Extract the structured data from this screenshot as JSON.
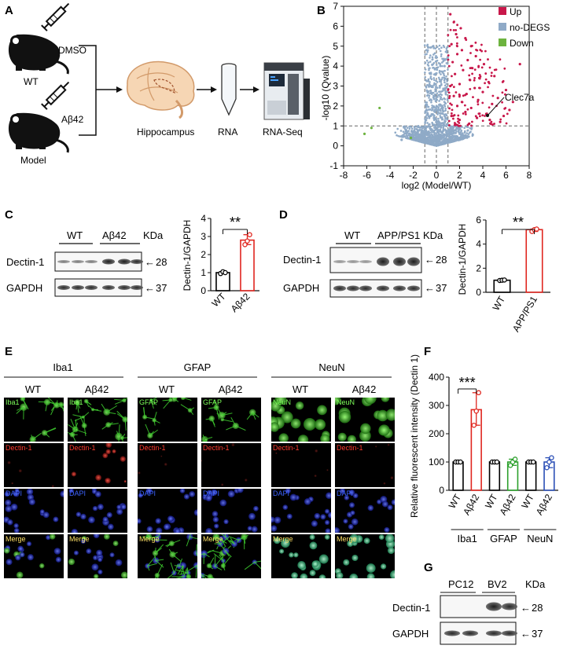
{
  "panel_letters": [
    "A",
    "B",
    "C",
    "D",
    "E",
    "F",
    "G"
  ],
  "panelA": {
    "wt_label": "WT",
    "model_label": "Model",
    "dmso_label": "DMSO",
    "abeta_label": "Aβ42",
    "hippocampus_label": "Hippocampus",
    "rna_label": "RNA",
    "rnaseq_label": "RNA-Seq"
  },
  "panelB": {
    "ylabel": "-log10 (Qvalue)",
    "xlabel": "log2 (Model/WT)",
    "annotation": "Clec7a",
    "legend": [
      {
        "label": "Up",
        "color": "#c8174a"
      },
      {
        "label": "no-DEGS",
        "color": "#8faac7"
      },
      {
        "label": "Down",
        "color": "#6db33f"
      }
    ]
  },
  "panelC": {
    "groups": [
      "WT",
      "Aβ42"
    ],
    "kda": "KDa",
    "rows": [
      {
        "label": "Dectin-1",
        "marker": "28"
      },
      {
        "label": "GAPDH",
        "marker": "37"
      }
    ],
    "sig": "**"
  },
  "panelD": {
    "groups": [
      "WT",
      "APP/PS1"
    ],
    "kda": "KDa",
    "rows": [
      {
        "label": "Dectin-1",
        "marker": "28"
      },
      {
        "label": "GAPDH",
        "marker": "37"
      }
    ],
    "sig": "**"
  },
  "panelE": {
    "groups": [
      {
        "marker": "Iba1",
        "conds": [
          "WT",
          "Aβ42"
        ]
      },
      {
        "marker": "GFAP",
        "conds": [
          "WT",
          "Aβ42"
        ]
      },
      {
        "marker": "NeuN",
        "conds": [
          "WT",
          "Aβ42"
        ]
      }
    ],
    "row_labels": [
      "Dectin-1",
      "DAPI",
      "Merge"
    ]
  },
  "panelF": {
    "sig": "***",
    "group_labels": [
      "Iba1",
      "GFAP",
      "NeuN"
    ]
  },
  "panelG": {
    "groups": [
      "PC12",
      "BV2"
    ],
    "kda": "KDa",
    "rows": [
      {
        "label": "Dectin-1",
        "marker": "28"
      },
      {
        "label": "GAPDH",
        "marker": "37"
      }
    ]
  },
  "chart_data": [
    {
      "type": "scatter",
      "xlabel": "log2 (Model/WT)",
      "ylabel": "-log10 (Qvalue)",
      "xlim": [
        -8,
        8
      ],
      "ylim": [
        -1,
        7
      ],
      "xticks": [
        -8,
        -6,
        -4,
        -2,
        0,
        2,
        4,
        6,
        8
      ],
      "yticks": [
        -1,
        0,
        1,
        2,
        3,
        4,
        5,
        6,
        7
      ],
      "thresholds": {
        "x": [
          -1,
          0,
          1
        ],
        "y": 1
      },
      "series": [
        {
          "name": "Up",
          "points": [
            [
              1.2,
              6.6
            ],
            [
              1.5,
              6.2
            ],
            [
              2.1,
              5.9
            ],
            [
              1.7,
              5.6
            ],
            [
              2.5,
              5.4
            ],
            [
              1.3,
              5.1
            ],
            [
              3.0,
              5.0
            ],
            [
              2.2,
              4.8
            ],
            [
              1.8,
              4.6
            ],
            [
              3.4,
              4.5
            ],
            [
              2.7,
              4.3
            ],
            [
              1.4,
              4.2
            ],
            [
              4.1,
              4.1
            ],
            [
              3.1,
              3.9
            ],
            [
              2.3,
              3.8
            ],
            [
              1.6,
              3.6
            ],
            [
              5.0,
              3.5
            ],
            [
              3.7,
              3.4
            ],
            [
              2.9,
              3.3
            ],
            [
              4.5,
              3.2
            ],
            [
              2.0,
              3.1
            ],
            [
              1.2,
              3.0
            ],
            [
              3.3,
              2.9
            ],
            [
              6.0,
              2.8
            ],
            [
              4.0,
              2.7
            ],
            [
              2.6,
              2.6
            ],
            [
              1.5,
              2.5
            ],
            [
              5.3,
              2.4
            ],
            [
              3.6,
              2.3
            ],
            [
              2.2,
              2.2
            ],
            [
              4.8,
              2.1
            ],
            [
              1.8,
              2.0
            ],
            [
              3.0,
              1.9
            ],
            [
              6.3,
              1.8
            ],
            [
              2.5,
              1.7
            ],
            [
              4.3,
              1.6
            ],
            [
              1.3,
              1.5
            ],
            [
              3.5,
              1.4
            ],
            [
              2.0,
              1.3
            ],
            [
              5.5,
              1.2
            ],
            [
              2.8,
              1.1
            ],
            [
              1.6,
              1.05
            ],
            [
              7.2,
              4.1
            ],
            [
              6.6,
              2.2
            ],
            [
              5.8,
              1.5
            ],
            [
              4.6,
              1.3
            ]
          ]
        },
        {
          "name": "Down",
          "points": [
            [
              -6.2,
              0.6
            ],
            [
              -5.6,
              0.9
            ],
            [
              -4.9,
              1.9
            ],
            [
              -2.2,
              0.4
            ]
          ]
        },
        {
          "name": "no-DEGS",
          "points": [
            [
              -3,
              0.3
            ],
            [
              -2,
              0.5
            ],
            [
              -1,
              0.8
            ],
            [
              0,
              0.4
            ],
            [
              1,
              0.6
            ],
            [
              2,
              0.3
            ],
            [
              -0.5,
              1.5
            ],
            [
              0.5,
              2.0
            ],
            [
              0.3,
              3.0
            ],
            [
              0.7,
              4.0
            ]
          ]
        }
      ],
      "annotations": [
        {
          "text": "Clec7a",
          "x": 4.3,
          "y": 1.7
        }
      ]
    },
    {
      "type": "bar",
      "ylabel": "Dectin-1/GAPDH",
      "categories": [
        "WT",
        "Aβ42"
      ],
      "values": [
        1.0,
        2.8
      ],
      "points": [
        [
          0.95,
          1.05,
          1.0
        ],
        [
          2.55,
          2.75,
          3.1
        ]
      ],
      "ylim": [
        0,
        4
      ],
      "yticks": [
        0,
        1,
        2,
        3,
        4
      ],
      "colors": [
        "#000000",
        "#e0261f"
      ]
    },
    {
      "type": "bar",
      "ylabel": "Dectin-1/GAPDH",
      "categories": [
        "WT",
        "APP/PS1"
      ],
      "values": [
        1.0,
        5.2
      ],
      "points": [
        [
          0.98,
          1.0,
          1.02
        ],
        [
          5.05,
          5.2,
          5.25
        ]
      ],
      "ylim": [
        0,
        6
      ],
      "yticks": [
        0,
        2,
        4,
        6
      ],
      "colors": [
        "#000000",
        "#e0261f"
      ]
    },
    {
      "type": "bar",
      "ylabel": "Relative fluorescent intensity (Dectin 1)",
      "categories": [
        "WT",
        "Aβ42",
        "WT",
        "Aβ42",
        "WT",
        "Aβ42"
      ],
      "values": [
        100,
        285,
        100,
        100,
        100,
        100
      ],
      "points": [
        [
          100,
          100,
          100
        ],
        [
          230,
          280,
          345
        ],
        [
          100,
          100,
          100
        ],
        [
          88,
          100,
          110
        ],
        [
          100,
          100,
          100
        ],
        [
          80,
          100,
          115
        ]
      ],
      "ylim": [
        0,
        400
      ],
      "yticks": [
        0,
        100,
        200,
        300,
        400
      ],
      "colors": [
        "#000000",
        "#e0261f",
        "#000000",
        "#2ca02c",
        "#000000",
        "#2b4fb6"
      ]
    }
  ]
}
